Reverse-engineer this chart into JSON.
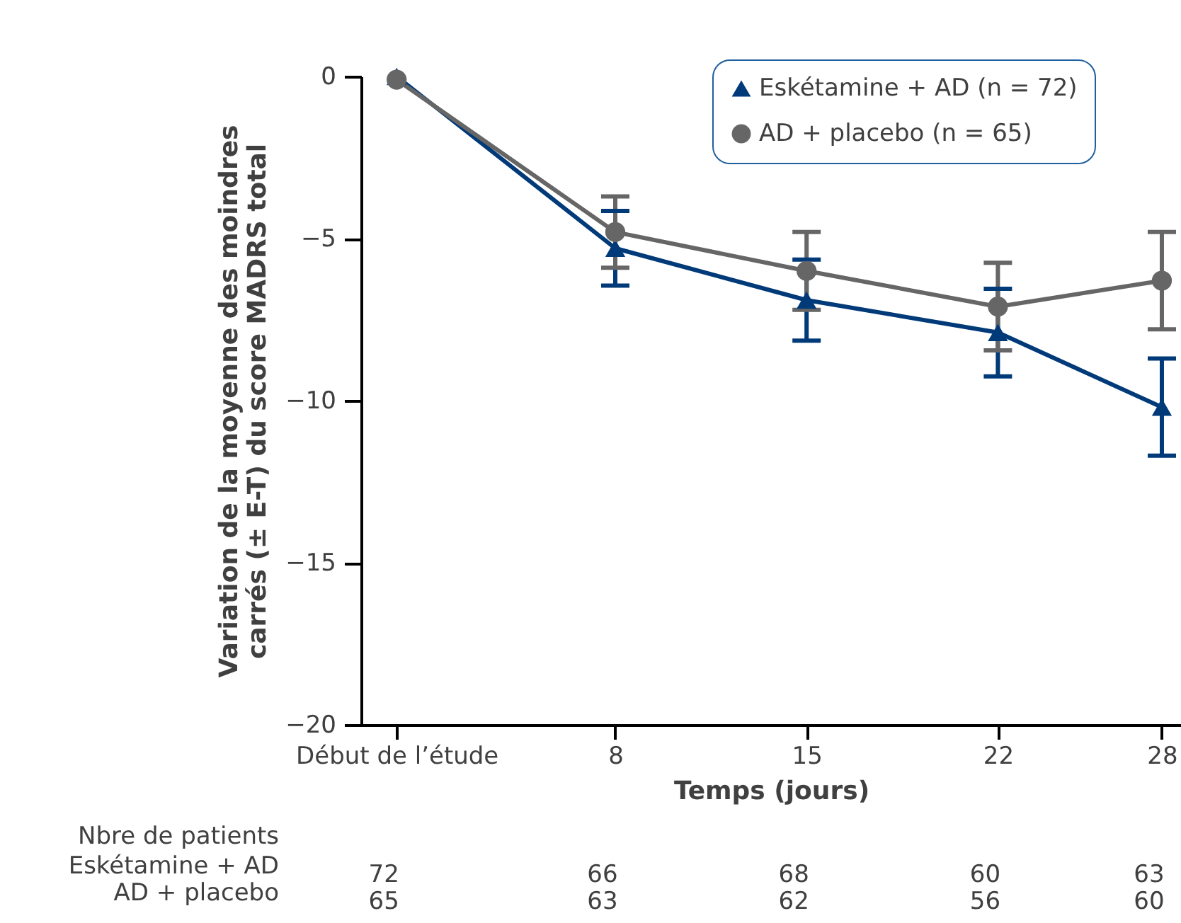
{
  "chart_data": {
    "type": "line",
    "xlabel": "Temps (jours)",
    "ylabel": "Variation de la moyenne des moindres\ncarrés (± E-T) du score MADRS total",
    "x": [
      0,
      8,
      15,
      22,
      28
    ],
    "xlim": [
      -1.3,
      28.7
    ],
    "xticks": [
      {
        "value": 0,
        "label": "Début de l’étude"
      },
      8,
      15,
      22,
      28
    ],
    "ylim": [
      -20,
      0
    ],
    "yticks": [
      0,
      -5,
      -10,
      -15,
      -20
    ],
    "grid": false,
    "legend": "top right",
    "line_style": "solid",
    "series": [
      {
        "name": "Eskétamine + AD (n = 72)",
        "color": "#003a78",
        "marker": "triangle",
        "values": [
          0,
          -5.3,
          -6.9,
          -7.9,
          -10.2
        ],
        "errors": [
          null,
          1.15,
          1.25,
          1.35,
          1.5
        ]
      },
      {
        "name": "AD + placebo (n = 65)",
        "color": "#666666",
        "marker": "circle",
        "values": [
          -0.1,
          -4.8,
          -6.0,
          -7.1,
          -6.3
        ],
        "errors": [
          null,
          1.1,
          1.2,
          1.35,
          1.5
        ]
      }
    ],
    "annotations": [
      "Nbre de patients",
      "Eskétamine + AD",
      "72",
      "66",
      "68",
      "60",
      "63",
      "AD + placebo",
      "65",
      "63",
      "62",
      "56",
      "60"
    ]
  }
}
